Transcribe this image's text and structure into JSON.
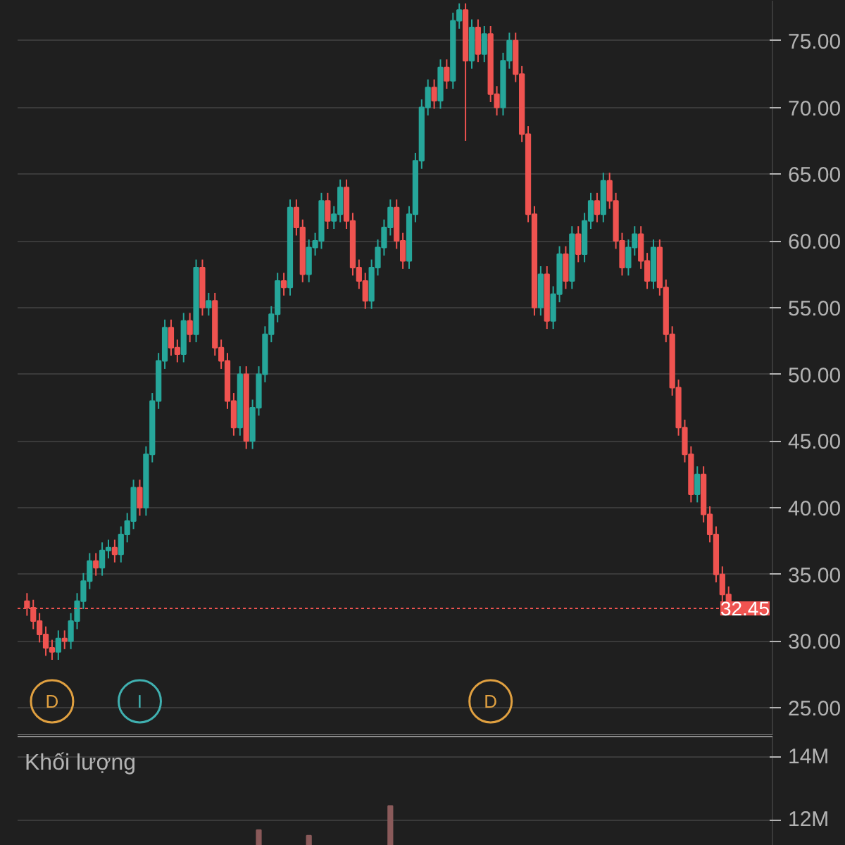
{
  "chart_data": [
    {
      "type": "candlestick",
      "categories": [
        null,
        null,
        null,
        null,
        null,
        null,
        null,
        null,
        null,
        null,
        null,
        null,
        null,
        null,
        null,
        null,
        null,
        null,
        null,
        null,
        null,
        null,
        null,
        null,
        null,
        null,
        null,
        null,
        null,
        null,
        null,
        null,
        null,
        null,
        null,
        null,
        null,
        null,
        null,
        null,
        null,
        null,
        null,
        null,
        null,
        null,
        null,
        null,
        null,
        null,
        null,
        null,
        null,
        null,
        null,
        null,
        null,
        null,
        null,
        null,
        null,
        null,
        null,
        null,
        null,
        null,
        null,
        null,
        null,
        null,
        null,
        null,
        null,
        null,
        null,
        null,
        null,
        null,
        null,
        null,
        null,
        null,
        null,
        null,
        null,
        null,
        null,
        null,
        null,
        null,
        null,
        null,
        null,
        null,
        null,
        null,
        null,
        null,
        null,
        null,
        null,
        null,
        null,
        null,
        null,
        null,
        null,
        null,
        null,
        null,
        null,
        null,
        null
      ],
      "ohlc": [
        [
          33.0,
          33.6,
          31.9,
          32.5
        ],
        [
          32.5,
          33.1,
          30.9,
          31.5
        ],
        [
          31.5,
          32.1,
          29.9,
          30.5
        ],
        [
          30.5,
          31.1,
          28.9,
          29.5
        ],
        [
          29.5,
          30.1,
          28.6,
          29.2
        ],
        [
          29.2,
          30.8,
          28.6,
          30.2
        ],
        [
          30.2,
          30.8,
          29.4,
          30.0
        ],
        [
          30.0,
          32.1,
          29.4,
          31.5
        ],
        [
          31.5,
          33.6,
          30.9,
          33.0
        ],
        [
          33.0,
          35.1,
          32.4,
          34.5
        ],
        [
          34.5,
          36.6,
          33.9,
          36.0
        ],
        [
          36.0,
          36.6,
          34.9,
          35.5
        ],
        [
          35.5,
          37.4,
          34.9,
          36.8
        ],
        [
          36.8,
          37.6,
          36.2,
          37.0
        ],
        [
          37.0,
          37.6,
          35.9,
          36.5
        ],
        [
          36.5,
          38.6,
          35.9,
          38.0
        ],
        [
          38.0,
          39.6,
          37.4,
          39.0
        ],
        [
          39.0,
          42.1,
          38.4,
          41.5
        ],
        [
          41.5,
          42.1,
          39.4,
          40.0
        ],
        [
          40.0,
          44.6,
          39.4,
          44.0
        ],
        [
          44.0,
          48.6,
          43.4,
          48.0
        ],
        [
          48.0,
          51.6,
          47.4,
          51.0
        ],
        [
          51.0,
          54.1,
          50.4,
          53.5
        ],
        [
          53.5,
          54.1,
          51.4,
          52.0
        ],
        [
          52.0,
          52.6,
          50.9,
          51.5
        ],
        [
          51.5,
          54.6,
          50.9,
          54.0
        ],
        [
          54.0,
          54.6,
          52.4,
          53.0
        ],
        [
          53.0,
          58.6,
          52.4,
          58.0
        ],
        [
          58.0,
          58.6,
          54.4,
          55.0
        ],
        [
          55.0,
          56.1,
          54.4,
          55.5
        ],
        [
          55.5,
          56.1,
          51.4,
          52.0
        ],
        [
          52.0,
          52.6,
          50.4,
          51.0
        ],
        [
          51.0,
          51.6,
          47.4,
          48.0
        ],
        [
          48.0,
          48.6,
          45.4,
          46.0
        ],
        [
          46.0,
          50.6,
          45.4,
          50.0
        ],
        [
          50.0,
          50.6,
          44.4,
          45.0
        ],
        [
          45.0,
          48.1,
          44.4,
          47.5
        ],
        [
          47.5,
          50.6,
          46.9,
          50.0
        ],
        [
          50.0,
          53.6,
          49.4,
          53.0
        ],
        [
          53.0,
          55.1,
          52.4,
          54.5
        ],
        [
          54.5,
          57.6,
          53.9,
          57.0
        ],
        [
          57.0,
          57.6,
          55.9,
          56.5
        ],
        [
          56.5,
          63.1,
          55.9,
          62.5
        ],
        [
          62.5,
          63.1,
          60.4,
          61.0
        ],
        [
          61.0,
          61.6,
          56.9,
          57.5
        ],
        [
          57.5,
          60.1,
          56.9,
          59.5
        ],
        [
          59.5,
          60.6,
          58.9,
          60.0
        ],
        [
          60.0,
          63.6,
          59.4,
          63.0
        ],
        [
          63.0,
          63.6,
          60.9,
          61.5
        ],
        [
          61.5,
          62.6,
          60.9,
          62.0
        ],
        [
          62.0,
          64.6,
          61.4,
          64.0
        ],
        [
          64.0,
          64.6,
          60.9,
          61.5
        ],
        [
          61.5,
          62.1,
          57.4,
          58.0
        ],
        [
          58.0,
          58.6,
          56.4,
          57.0
        ],
        [
          57.0,
          57.6,
          54.9,
          55.5
        ],
        [
          55.5,
          58.6,
          54.9,
          58.0
        ],
        [
          58.0,
          60.1,
          57.4,
          59.5
        ],
        [
          59.5,
          61.6,
          58.9,
          61.0
        ],
        [
          61.0,
          63.1,
          60.4,
          62.5
        ],
        [
          62.5,
          63.1,
          59.4,
          60.0
        ],
        [
          60.0,
          60.6,
          57.9,
          58.5
        ],
        [
          58.5,
          62.6,
          57.9,
          62.0
        ],
        [
          62.0,
          66.6,
          61.4,
          66.0
        ],
        [
          66.0,
          70.6,
          65.4,
          70.0
        ],
        [
          70.0,
          72.1,
          69.4,
          71.5
        ],
        [
          71.5,
          72.1,
          69.9,
          70.5
        ],
        [
          70.5,
          73.6,
          69.9,
          73.0
        ],
        [
          73.0,
          73.6,
          71.4,
          72.0
        ],
        [
          72.0,
          77.1,
          71.4,
          76.5
        ],
        [
          76.5,
          77.8,
          75.9,
          77.3
        ],
        [
          77.3,
          77.8,
          67.5,
          73.5
        ],
        [
          73.5,
          76.6,
          72.9,
          76.0
        ],
        [
          76.0,
          76.6,
          73.4,
          74.0
        ],
        [
          74.0,
          76.1,
          73.4,
          75.5
        ],
        [
          75.5,
          76.1,
          70.4,
          71.0
        ],
        [
          71.0,
          71.6,
          69.4,
          70.0
        ],
        [
          70.0,
          74.1,
          69.4,
          73.5
        ],
        [
          73.5,
          75.6,
          72.9,
          75.0
        ],
        [
          75.0,
          75.6,
          71.9,
          72.5
        ],
        [
          72.5,
          73.1,
          67.4,
          68.0
        ],
        [
          68.0,
          68.6,
          61.4,
          62.0
        ],
        [
          62.0,
          62.6,
          54.4,
          55.0
        ],
        [
          55.0,
          58.1,
          54.4,
          57.5
        ],
        [
          57.5,
          58.1,
          53.4,
          54.0
        ],
        [
          54.0,
          56.6,
          53.4,
          56.0
        ],
        [
          56.0,
          59.6,
          55.4,
          59.0
        ],
        [
          59.0,
          59.6,
          56.4,
          57.0
        ],
        [
          57.0,
          61.1,
          56.4,
          60.5
        ],
        [
          60.5,
          61.1,
          58.4,
          59.0
        ],
        [
          59.0,
          62.1,
          58.4,
          61.5
        ],
        [
          61.5,
          63.6,
          60.9,
          63.0
        ],
        [
          63.0,
          63.6,
          61.4,
          62.0
        ],
        [
          62.0,
          65.1,
          61.4,
          64.5
        ],
        [
          64.5,
          65.1,
          62.4,
          63.0
        ],
        [
          63.0,
          63.6,
          59.4,
          60.0
        ],
        [
          60.0,
          60.6,
          57.4,
          58.0
        ],
        [
          58.0,
          60.1,
          57.4,
          59.5
        ],
        [
          59.5,
          61.1,
          58.9,
          60.5
        ],
        [
          60.5,
          61.1,
          57.9,
          58.5
        ],
        [
          58.5,
          59.1,
          56.4,
          57.0
        ],
        [
          57.0,
          60.1,
          56.4,
          59.5
        ],
        [
          59.5,
          60.1,
          55.9,
          56.5
        ],
        [
          56.5,
          57.1,
          52.4,
          53.0
        ],
        [
          53.0,
          53.6,
          48.4,
          49.0
        ],
        [
          49.0,
          49.6,
          45.4,
          46.0
        ],
        [
          46.0,
          46.6,
          43.4,
          44.0
        ],
        [
          44.0,
          44.6,
          40.4,
          41.0
        ],
        [
          41.0,
          43.1,
          40.4,
          42.5
        ],
        [
          42.5,
          43.1,
          38.9,
          39.5
        ],
        [
          39.5,
          40.1,
          37.4,
          38.0
        ],
        [
          38.0,
          38.6,
          34.4,
          35.0
        ],
        [
          35.0,
          35.6,
          32.9,
          33.5
        ],
        [
          33.5,
          34.1,
          32.4,
          32.45
        ]
      ],
      "colors": [
        "#ef5350",
        "#ef5350",
        "#ef5350",
        "#ef5350",
        "#ef5350",
        "#26a69a",
        "#ef5350",
        "#26a69a",
        "#26a69a",
        "#26a69a",
        "#26a69a",
        "#ef5350",
        "#26a69a",
        "#26a69a",
        "#ef5350",
        "#26a69a",
        "#26a69a",
        "#26a69a",
        "#ef5350",
        "#26a69a",
        "#26a69a",
        "#26a69a",
        "#26a69a",
        "#ef5350",
        "#ef5350",
        "#26a69a",
        "#ef5350",
        "#26a69a",
        "#ef5350",
        "#26a69a",
        "#ef5350",
        "#ef5350",
        "#ef5350",
        "#ef5350",
        "#26a69a",
        "#ef5350",
        "#26a69a",
        "#26a69a",
        "#26a69a",
        "#26a69a",
        "#26a69a",
        "#ef5350",
        "#26a69a",
        "#ef5350",
        "#ef5350",
        "#26a69a",
        "#26a69a",
        "#26a69a",
        "#ef5350",
        "#26a69a",
        "#26a69a",
        "#ef5350",
        "#ef5350",
        "#ef5350",
        "#ef5350",
        "#26a69a",
        "#26a69a",
        "#26a69a",
        "#26a69a",
        "#ef5350",
        "#ef5350",
        "#26a69a",
        "#26a69a",
        "#26a69a",
        "#26a69a",
        "#ef5350",
        "#26a69a",
        "#ef5350",
        "#26a69a",
        "#26a69a",
        "#ef5350",
        "#26a69a",
        "#ef5350",
        "#26a69a",
        "#ef5350",
        "#ef5350",
        "#26a69a",
        "#26a69a",
        "#ef5350",
        "#ef5350",
        "#ef5350",
        "#ef5350",
        "#26a69a",
        "#ef5350",
        "#26a69a",
        "#26a69a",
        "#ef5350",
        "#26a69a",
        "#ef5350",
        "#26a69a",
        "#26a69a",
        "#ef5350",
        "#26a69a",
        "#ef5350",
        "#ef5350",
        "#ef5350",
        "#26a69a",
        "#26a69a",
        "#ef5350",
        "#ef5350",
        "#26a69a",
        "#ef5350",
        "#ef5350",
        "#ef5350",
        "#ef5350",
        "#ef5350",
        "#ef5350",
        "#26a69a",
        "#ef5350",
        "#ef5350",
        "#ef5350",
        "#ef5350",
        "#ef5350"
      ],
      "ylim": [
        22.9,
        78.0
      ],
      "yticks": [
        {
          "value": 25,
          "label": "25.00"
        },
        {
          "value": 30,
          "label": "30.00"
        },
        {
          "value": 35,
          "label": "35.00"
        },
        {
          "value": 40,
          "label": "40.00"
        },
        {
          "value": 45,
          "label": "45.00"
        },
        {
          "value": 50,
          "label": "50.00"
        },
        {
          "value": 55,
          "label": "55.00"
        },
        {
          "value": 60,
          "label": "60.00"
        },
        {
          "value": 65,
          "label": "65.00"
        },
        {
          "value": 70,
          "label": "70.00"
        },
        {
          "value": 75,
          "label": "75.00"
        }
      ],
      "ref_lines": [
        {
          "axis": "y",
          "value": 32.45,
          "label": "32.45",
          "color": "#ef5350",
          "line_style": "dotted"
        }
      ],
      "annotations": [
        "D",
        "I",
        "D"
      ],
      "grid": "y",
      "tick_labels": "y"
    },
    {
      "type": "bar",
      "title": "Khối lượng",
      "categories": [
        null,
        null,
        null,
        null,
        null,
        null,
        null,
        null,
        null,
        null,
        null,
        null,
        null,
        null,
        null,
        null,
        null,
        null,
        null,
        null,
        null,
        null,
        null,
        null,
        null,
        null,
        null,
        null,
        null,
        null,
        null,
        null,
        null,
        null,
        null,
        null,
        null,
        null,
        null,
        null,
        null,
        null,
        null,
        null,
        null,
        null,
        null,
        null,
        null,
        null,
        null,
        null,
        null,
        null,
        null,
        null,
        null,
        null,
        null,
        null,
        null,
        null,
        null,
        null,
        null,
        null,
        null,
        null,
        null,
        null,
        null,
        null,
        null,
        null,
        null,
        null,
        null,
        null,
        null,
        null,
        null,
        null,
        null,
        null,
        null,
        null,
        null,
        null,
        null,
        null,
        null,
        null,
        null,
        null,
        null,
        null,
        null,
        null,
        null,
        null,
        null,
        null,
        null,
        null,
        null,
        null,
        null,
        null,
        null,
        null,
        null,
        null,
        null
      ],
      "values": [
        null,
        null,
        null,
        null,
        null,
        null,
        null,
        null,
        null,
        null,
        null,
        null,
        null,
        null,
        null,
        null,
        null,
        null,
        null,
        null,
        null,
        null,
        null,
        null,
        null,
        null,
        null,
        null,
        null,
        null,
        null,
        null,
        null,
        null,
        null,
        null,
        null,
        11680000,
        null,
        null,
        null,
        null,
        null,
        null,
        null,
        11500000,
        null,
        null,
        null,
        null,
        null,
        null,
        null,
        null,
        null,
        null,
        null,
        null,
        12450000,
        null,
        null,
        null,
        null,
        null,
        null,
        null,
        null,
        null,
        null,
        null,
        null,
        null,
        null,
        null,
        null,
        null,
        null,
        null,
        null,
        null,
        null,
        null,
        null,
        null,
        null,
        null,
        null,
        null,
        null,
        null,
        null,
        null,
        null,
        null,
        null,
        null,
        null,
        null,
        null,
        null,
        null,
        null,
        null,
        null,
        null,
        null,
        null,
        null,
        null,
        null,
        null,
        null,
        null
      ],
      "color": "#8a5a5a",
      "ylim": [
        11180000,
        14680000
      ],
      "yticks": [
        {
          "value": 12000000,
          "label": "12M"
        },
        {
          "value": 14000000,
          "label": "14M"
        }
      ],
      "grid": "y",
      "tick_labels": "y"
    }
  ]
}
